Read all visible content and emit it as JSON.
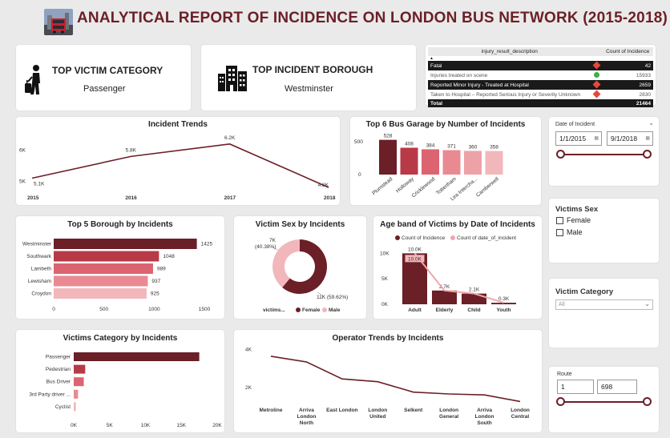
{
  "header": {
    "title": "ANALYTICAL REPORT OF INCIDENCE ON LONDON BUS NETWORK (2015-2018)",
    "logo_icon": "london-bus-photo"
  },
  "kpis": {
    "victim": {
      "title": "TOP VICTIM CATEGORY",
      "value": "Passenger",
      "icon": "person-with-luggage-icon"
    },
    "borough": {
      "title": "TOP INCIDENT BOROUGH",
      "value": "Westminster",
      "icon": "city-buildings-icon"
    }
  },
  "injury_table": {
    "col1": "injury_result_description",
    "col2": "Count of Incidence",
    "rows": [
      {
        "label": "Fatal",
        "value": "42",
        "status": "red"
      },
      {
        "label": "Injuries treated on scene",
        "value": "15933",
        "status": "green"
      },
      {
        "label": "Reported Minor Injury - Treated at Hospital",
        "value": "2659",
        "status": "red"
      },
      {
        "label": "Taken to Hospital – Reported Serious Injury or Severity Unknown",
        "value": "2830",
        "status": "red"
      }
    ],
    "total_label": "Total",
    "total_value": "21464",
    "colors": {
      "red": "#e8473b",
      "green": "#3fae4a"
    }
  },
  "incident_trends": {
    "title": "Incident Trends",
    "chart_data": {
      "type": "line",
      "x": [
        "2015",
        "2016",
        "2017",
        "2018"
      ],
      "values": [
        5100,
        5800,
        6200,
        4800
      ],
      "data_labels": [
        "5.1K",
        "5.8K",
        "6.2K",
        "4.8K"
      ],
      "y_ticks": [
        "5K",
        "6K"
      ],
      "color": "#6b1f26"
    }
  },
  "garage": {
    "title": "Top 6 Bus Garage by Number of Incidents",
    "chart_data": {
      "type": "bar",
      "categories": [
        "Plumstead",
        "Holloway",
        "Cricklewood",
        "Tottenham",
        "Lea Intercha...",
        "Camberwell"
      ],
      "values": [
        528,
        408,
        384,
        371,
        360,
        358
      ],
      "y_ticks": [
        0,
        500
      ],
      "ylim": [
        0,
        560
      ],
      "colors": [
        "#6b1f26",
        "#b83a47",
        "#dc6470",
        "#e98a92",
        "#eda2a8",
        "#f2b7bb"
      ]
    }
  },
  "date_slicer": {
    "title": "Date of Incident",
    "start": "1/1/2015",
    "end": "9/1/2018"
  },
  "borough": {
    "title": "Top 5 Borough by Incidents",
    "chart_data": {
      "type": "bar",
      "categories": [
        "Westminster",
        "Southwark",
        "Lambeth",
        "Lewisham",
        "Croydon"
      ],
      "values": [
        1425,
        1048,
        989,
        937,
        925
      ],
      "x_ticks": [
        0,
        500,
        1000,
        1500
      ],
      "xlim": [
        0,
        1500
      ],
      "colors": [
        "#6b1f26",
        "#b83a47",
        "#dc6470",
        "#e98a92",
        "#f2b7bb"
      ]
    }
  },
  "victim_sex": {
    "title": "Victim Sex by Incidents",
    "chart_data": {
      "type": "pie",
      "categories": [
        "Female",
        "Male"
      ],
      "values": [
        11000,
        7000
      ],
      "percent": [
        59.62,
        40.38
      ],
      "labels": [
        "11K (59.62%)",
        "7K (40.38%)"
      ],
      "colors": [
        "#6b1f26",
        "#f2b7bb"
      ]
    },
    "legend_label": "victims..."
  },
  "age_band": {
    "title": "Age band of Victims by Date of Incidents",
    "chart_data": {
      "type": "bar",
      "categories": [
        "Adult",
        "Elderly",
        "Child",
        "Youth"
      ],
      "series": [
        {
          "name": "Count of Incidence",
          "values": [
            10000,
            2700,
            2100,
            300
          ],
          "labels": [
            "10.0K",
            "2.7K",
            "2.1K",
            "0.3K"
          ],
          "color": "#6b1f26"
        },
        {
          "name": "Count of date_of_incident",
          "values": [
            10000,
            2700,
            2100,
            300
          ],
          "labels": [
            "10.0K",
            "",
            "",
            ""
          ],
          "color": "#f2a5ac"
        }
      ],
      "y_ticks": [
        "0K",
        "5K",
        "10K"
      ],
      "ylim": [
        0,
        11000
      ]
    }
  },
  "victims_sex_slicer": {
    "title": "Victims Sex",
    "options": [
      "Female",
      "Male"
    ]
  },
  "victim_category_slicer": {
    "title": "Victim Category",
    "selected": "All"
  },
  "victims_category": {
    "title": "Victims Category by Incidents",
    "chart_data": {
      "type": "bar",
      "categories": [
        "Passenger",
        "Pedestrian",
        "Bus Driver",
        "3rd Party driver ...",
        "Cyclist"
      ],
      "values": [
        17500,
        1600,
        1400,
        600,
        300
      ],
      "x_ticks": [
        "0K",
        "5K",
        "10K",
        "15K",
        "20K"
      ],
      "xlim": [
        0,
        20000
      ],
      "colors": [
        "#6b1f26",
        "#b83a47",
        "#dc6470",
        "#e98a92",
        "#f2b7bb"
      ]
    }
  },
  "operator": {
    "title": "Operator Trends by Incidents",
    "chart_data": {
      "type": "line",
      "categories": [
        "Metroline",
        "Arriva London North",
        "East London",
        "London United",
        "Selkent",
        "London General",
        "Arriva London South",
        "London Central"
      ],
      "values": [
        3650,
        3350,
        2450,
        2300,
        1750,
        1650,
        1600,
        1250
      ],
      "y_ticks": [
        "2K",
        "4K"
      ],
      "ylim": [
        800,
        4200
      ],
      "color": "#6b1f26"
    }
  },
  "route_slicer": {
    "title": "Route",
    "start": "1",
    "end": "698"
  }
}
